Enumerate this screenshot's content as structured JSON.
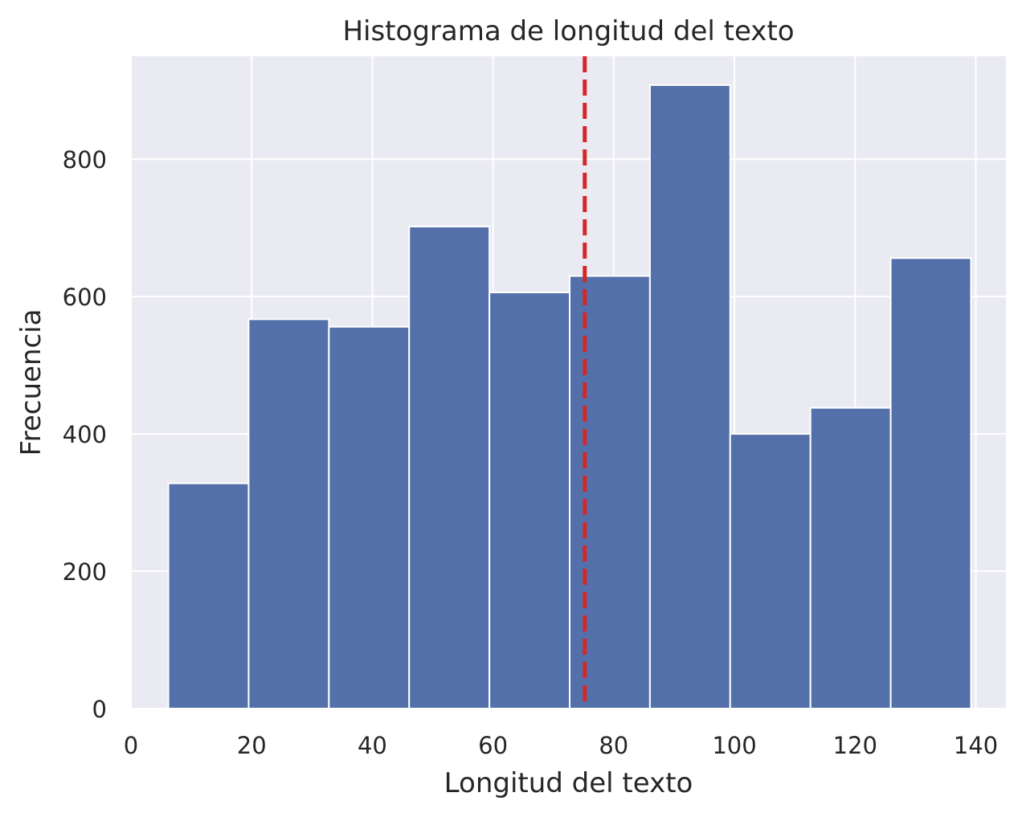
{
  "chart_data": {
    "type": "bar",
    "subtype": "histogram",
    "title": "Histograma de longitud del texto",
    "xlabel": "Longitud del texto",
    "ylabel": "Frecuencia",
    "xlim": [
      0,
      145
    ],
    "ylim": [
      0,
      950
    ],
    "xticks": [
      0,
      20,
      40,
      60,
      80,
      100,
      120,
      140
    ],
    "yticks": [
      0,
      200,
      400,
      600,
      800
    ],
    "bins": [
      {
        "x0": 6.2,
        "x1": 19.5,
        "value": 328
      },
      {
        "x0": 19.5,
        "x1": 32.8,
        "value": 567
      },
      {
        "x0": 32.8,
        "x1": 46.1,
        "value": 556
      },
      {
        "x0": 46.1,
        "x1": 59.4,
        "value": 702
      },
      {
        "x0": 59.4,
        "x1": 72.7,
        "value": 606
      },
      {
        "x0": 72.7,
        "x1": 86.0,
        "value": 630
      },
      {
        "x0": 86.0,
        "x1": 99.3,
        "value": 908
      },
      {
        "x0": 99.3,
        "x1": 112.6,
        "value": 400
      },
      {
        "x0": 112.6,
        "x1": 125.9,
        "value": 438
      },
      {
        "x0": 125.9,
        "x1": 139.2,
        "value": 656
      }
    ],
    "reference_line": {
      "x": 75.2,
      "style": "dashed",
      "color": "#d62728"
    },
    "bar_color": "#5470aa",
    "background_color": "#eaeaf2",
    "grid": true
  }
}
